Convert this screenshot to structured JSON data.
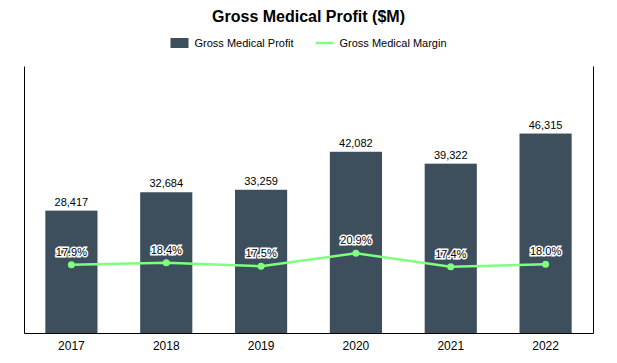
{
  "chart_data": {
    "type": "bar",
    "title": "Gross Medical Profit ($M)",
    "categories": [
      "2017",
      "2018",
      "2019",
      "2020",
      "2021",
      "2022"
    ],
    "series": [
      {
        "name": "Gross Medical Profit",
        "type": "bar",
        "color": "#3d4f5c",
        "values": [
          28417,
          32684,
          33259,
          42082,
          39322,
          46315
        ],
        "value_labels": [
          "28,417",
          "32,684",
          "33,259",
          "42,082",
          "39,322",
          "46,315"
        ]
      },
      {
        "name": "Gross Medical Margin",
        "type": "line",
        "color": "#7fff7f",
        "axis": "y2",
        "marker": "circle",
        "values": [
          17.9,
          18.4,
          17.5,
          20.9,
          17.4,
          18.0
        ],
        "value_labels": [
          "17.9%",
          "18.4%",
          "17.5%",
          "20.9%",
          "17.4%",
          "18.0%"
        ]
      }
    ],
    "ylim": [
      0,
      62000
    ],
    "y2lim": [
      0,
      70
    ],
    "tick_labels": "x",
    "grid": false,
    "legend": "top",
    "data_labels": true
  }
}
